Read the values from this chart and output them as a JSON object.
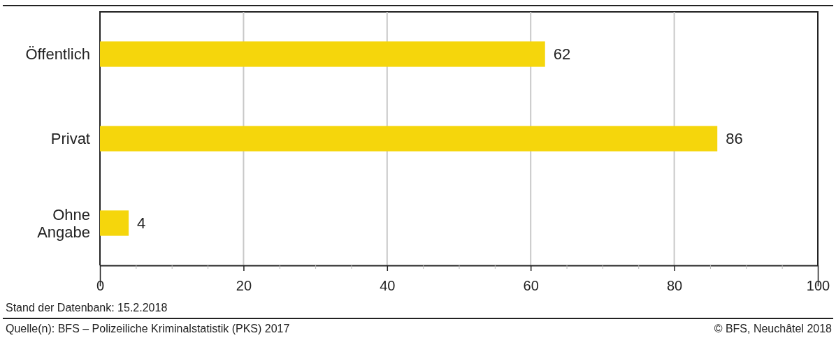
{
  "chart_data": {
    "type": "bar",
    "orientation": "horizontal",
    "categories": [
      "Öffentlich",
      "Privat",
      "Ohne Angabe"
    ],
    "values": [
      62,
      86,
      4
    ],
    "color": "#f5d60c",
    "data_labels": true,
    "grid": "x",
    "xlim": [
      0,
      100
    ],
    "xticks": [
      0,
      {
        "value": 5,
        "label": null
      },
      {
        "value": 10,
        "label": null
      },
      {
        "value": 15,
        "label": null
      },
      20,
      {
        "value": 25,
        "label": null
      },
      {
        "value": 30,
        "label": null
      },
      {
        "value": 35,
        "label": null
      },
      40,
      {
        "value": 45,
        "label": null
      },
      {
        "value": 50,
        "label": null
      },
      {
        "value": 55,
        "label": null
      },
      60,
      {
        "value": 65,
        "label": null
      },
      {
        "value": 70,
        "label": null
      },
      {
        "value": 75,
        "label": null
      },
      80,
      {
        "value": 85,
        "label": null
      },
      {
        "value": 90,
        "label": null
      },
      {
        "value": 95,
        "label": null
      },
      100
    ],
    "annotations": [
      "Stand der Datenbank: 15.2.2018",
      "Quelle(n): BFS – Polizeiliche Kriminalstatistik (PKS) 2017",
      "© BFS, Neuchâtel 2018"
    ]
  }
}
